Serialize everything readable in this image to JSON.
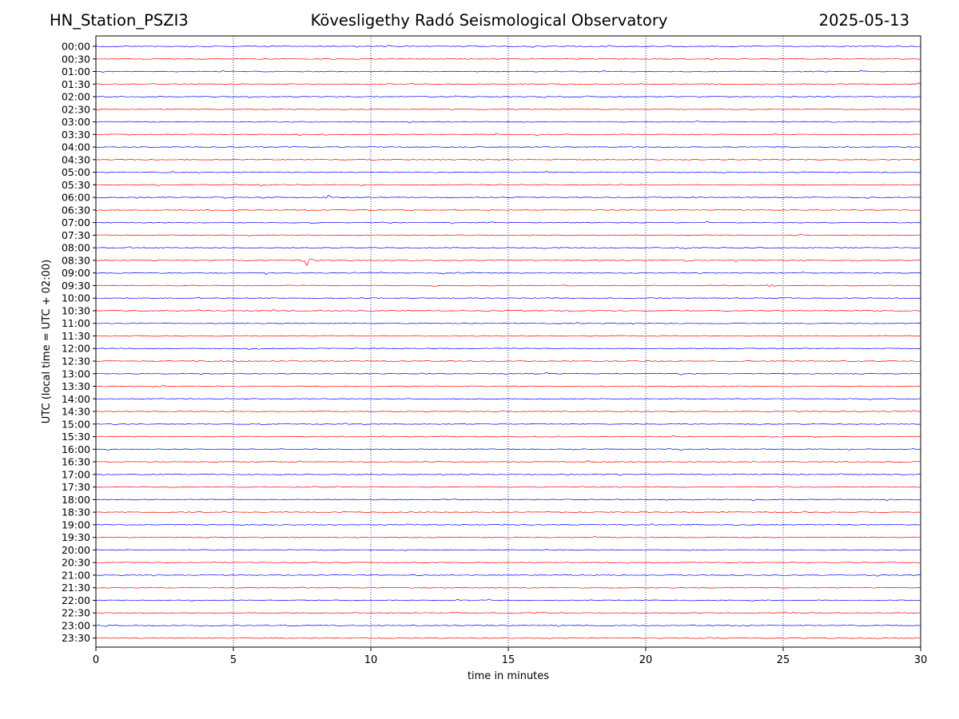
{
  "header": {
    "station": "HN_Station_PSZI3",
    "observatory": "Kövesligethy Radó Seismological Observatory",
    "date": "2025-05-13"
  },
  "chart_data": {
    "type": "line",
    "title": "Kövesligethy Radó Seismological Observatory",
    "xlabel": "time in minutes",
    "ylabel": "UTC (local time = UTC + 02:00)",
    "xlim": [
      0,
      30
    ],
    "xticks": [
      0,
      5,
      10,
      15,
      20,
      25,
      30
    ],
    "xtick_labels": [
      "0",
      "5",
      "10",
      "15",
      "20",
      "25",
      "30"
    ],
    "grid_verticals": [
      5,
      10,
      15,
      20,
      25
    ],
    "rows": [
      "00:00",
      "00:30",
      "01:00",
      "01:30",
      "02:00",
      "02:30",
      "03:00",
      "03:30",
      "04:00",
      "04:30",
      "05:00",
      "05:30",
      "06:00",
      "06:30",
      "07:00",
      "07:30",
      "08:00",
      "08:30",
      "09:00",
      "09:30",
      "10:00",
      "10:30",
      "11:00",
      "11:30",
      "12:00",
      "12:30",
      "13:00",
      "13:30",
      "14:00",
      "14:30",
      "15:00",
      "15:30",
      "16:00",
      "16:30",
      "17:00",
      "17:30",
      "18:00",
      "18:30",
      "19:00",
      "19:30",
      "20:00",
      "20:30",
      "21:00",
      "21:30",
      "22:00",
      "22:30",
      "23:00",
      "23:30"
    ],
    "trace_colors": [
      "#0000ff",
      "#ff0000"
    ],
    "events": [
      {
        "row": "06:00",
        "minute": 8.4,
        "amplitude": 9
      },
      {
        "row": "08:00",
        "minute": 21.35,
        "amplitude": 6
      },
      {
        "row": "08:30",
        "minute": 7.7,
        "amplitude": 11
      },
      {
        "row": "08:30",
        "minute": 21.45,
        "amplitude": 2
      },
      {
        "row": "09:00",
        "minute": 6.2,
        "amplitude": 5
      },
      {
        "row": "09:00",
        "minute": 13.75,
        "amplitude": 3
      },
      {
        "row": "09:30",
        "minute": 12.35,
        "amplitude": 2.5
      },
      {
        "row": "09:30",
        "minute": 24.55,
        "amplitude": 3
      }
    ]
  }
}
